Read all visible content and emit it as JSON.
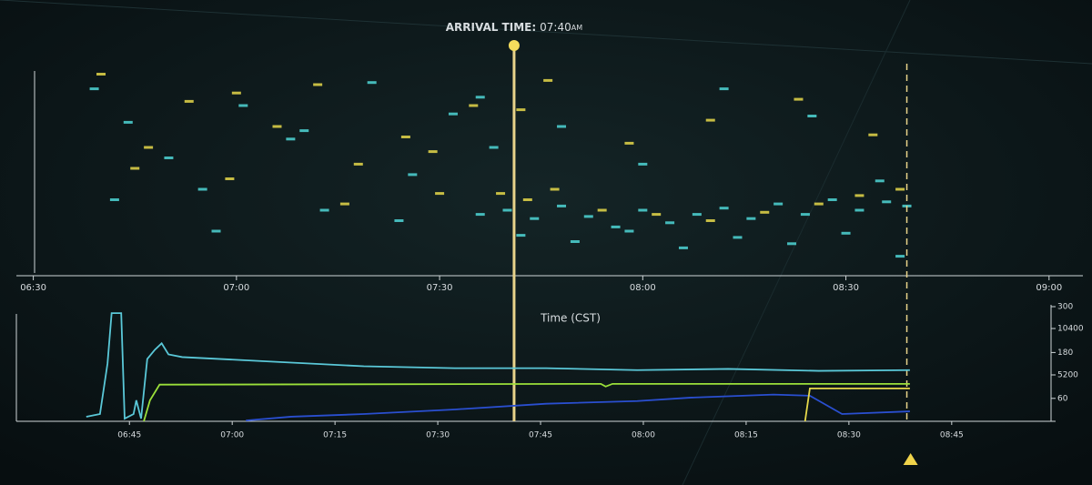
{
  "chart_data": [
    {
      "type": "scatter",
      "annotation": {
        "label": "ARRIVAL TIME:",
        "text": "07:40",
        "suffix": "AM",
        "x": 461
      },
      "reference_x": 519,
      "xlabel": "Time (CST)",
      "xlim": [
        387.5,
        545
      ],
      "ylim": [
        0,
        100
      ],
      "xticks": [
        {
          "value": 390,
          "label": "06:30"
        },
        {
          "value": 420,
          "label": "07:00"
        },
        {
          "value": 450,
          "label": "07:30"
        },
        {
          "value": 480,
          "label": "08:00"
        },
        {
          "value": 510,
          "label": "08:30"
        },
        {
          "value": 540,
          "label": "09:00"
        }
      ],
      "series": [
        {
          "color": "#4fd6d6",
          "x": [
            399,
            404,
            410,
            415,
            421,
            428,
            433,
            440,
            446,
            452,
            458,
            402,
            417,
            430,
            444,
            456,
            468,
            480,
            492,
            505,
            515,
            456,
            460,
            464,
            468,
            472,
            476,
            480,
            484,
            488,
            492,
            496,
            500,
            504,
            508,
            512,
            516,
            519,
            462,
            470,
            478,
            486,
            494,
            502,
            510,
            518
          ],
          "values": [
            88,
            72,
            55,
            40,
            80,
            64,
            30,
            91,
            47,
            76,
            60,
            35,
            20,
            68,
            25,
            84,
            70,
            52,
            88,
            75,
            44,
            28,
            30,
            26,
            32,
            27,
            22,
            30,
            24,
            28,
            31,
            26,
            33,
            28,
            35,
            30,
            34,
            32,
            18,
            15,
            20,
            12,
            17,
            14,
            19,
            8
          ]
        },
        {
          "color": "#e6d84a",
          "x": [
            400,
            407,
            413,
            419,
            426,
            432,
            438,
            445,
            450,
            455,
            462,
            405,
            420,
            436,
            449,
            466,
            478,
            490,
            503,
            514,
            459,
            463,
            467,
            474,
            482,
            490,
            498,
            506,
            512,
            518
          ],
          "values": [
            95,
            60,
            82,
            45,
            70,
            90,
            52,
            65,
            38,
            80,
            78,
            50,
            86,
            33,
            58,
            92,
            62,
            73,
            83,
            66,
            38,
            35,
            40,
            30,
            28,
            25,
            29,
            33,
            37,
            40
          ]
        }
      ]
    },
    {
      "type": "line",
      "xlim": [
        388.5,
        539.5
      ],
      "ylim": [
        0,
        300
      ],
      "y2lim": [
        0,
        12850
      ],
      "marker_x": 519,
      "xticks": [
        {
          "value": 405,
          "label": "06:45"
        },
        {
          "value": 420,
          "label": "07:00"
        },
        {
          "value": 435,
          "label": "07:15"
        },
        {
          "value": 450,
          "label": "07:30"
        },
        {
          "value": 465,
          "label": "07:45"
        },
        {
          "value": 480,
          "label": "08:00"
        },
        {
          "value": 495,
          "label": "08:15"
        },
        {
          "value": 510,
          "label": "08:30"
        },
        {
          "value": 525,
          "label": "08:45"
        }
      ],
      "yticks": [
        60,
        180,
        300
      ],
      "y2ticks": [
        5200,
        10400
      ],
      "series": [
        {
          "color": "#5ac8d8",
          "x": [
            398.7,
            400.7,
            401.8,
            402.4,
            403.8,
            404.3,
            405.6,
            406.0,
            406.7,
            407.6,
            408.7,
            409.7,
            410.7,
            412.7,
            426.0,
            439.2,
            452.5,
            465.8,
            479.1,
            492.4,
            505.6,
            518.9
          ],
          "values": [
            12,
            19,
            151,
            283,
            283,
            7,
            19,
            55,
            7,
            163,
            187,
            204,
            175,
            168,
            156,
            144,
            139,
            139,
            134,
            137,
            132,
            134
          ]
        },
        {
          "color": "#9be03a",
          "x": [
            407.1,
            408.0,
            409.4,
            473.8,
            474.5,
            475.5,
            518.9
          ],
          "values": [
            0,
            55,
            96,
            98,
            91,
            98,
            98
          ]
        },
        {
          "color": "#2a4fd0",
          "x": [
            422.0,
            428.6,
            439.2,
            452.5,
            465.8,
            479.1,
            487.0,
            499.0,
            504.3,
            509.0,
            518.9
          ],
          "values": [
            2,
            12,
            19,
            31,
            46,
            53,
            62,
            70,
            67,
            19,
            26
          ]
        },
        {
          "color": "#e6d84a",
          "x": [
            503.6,
            504.3,
            518.9
          ],
          "values": [
            0,
            86,
            86
          ]
        }
      ]
    }
  ]
}
